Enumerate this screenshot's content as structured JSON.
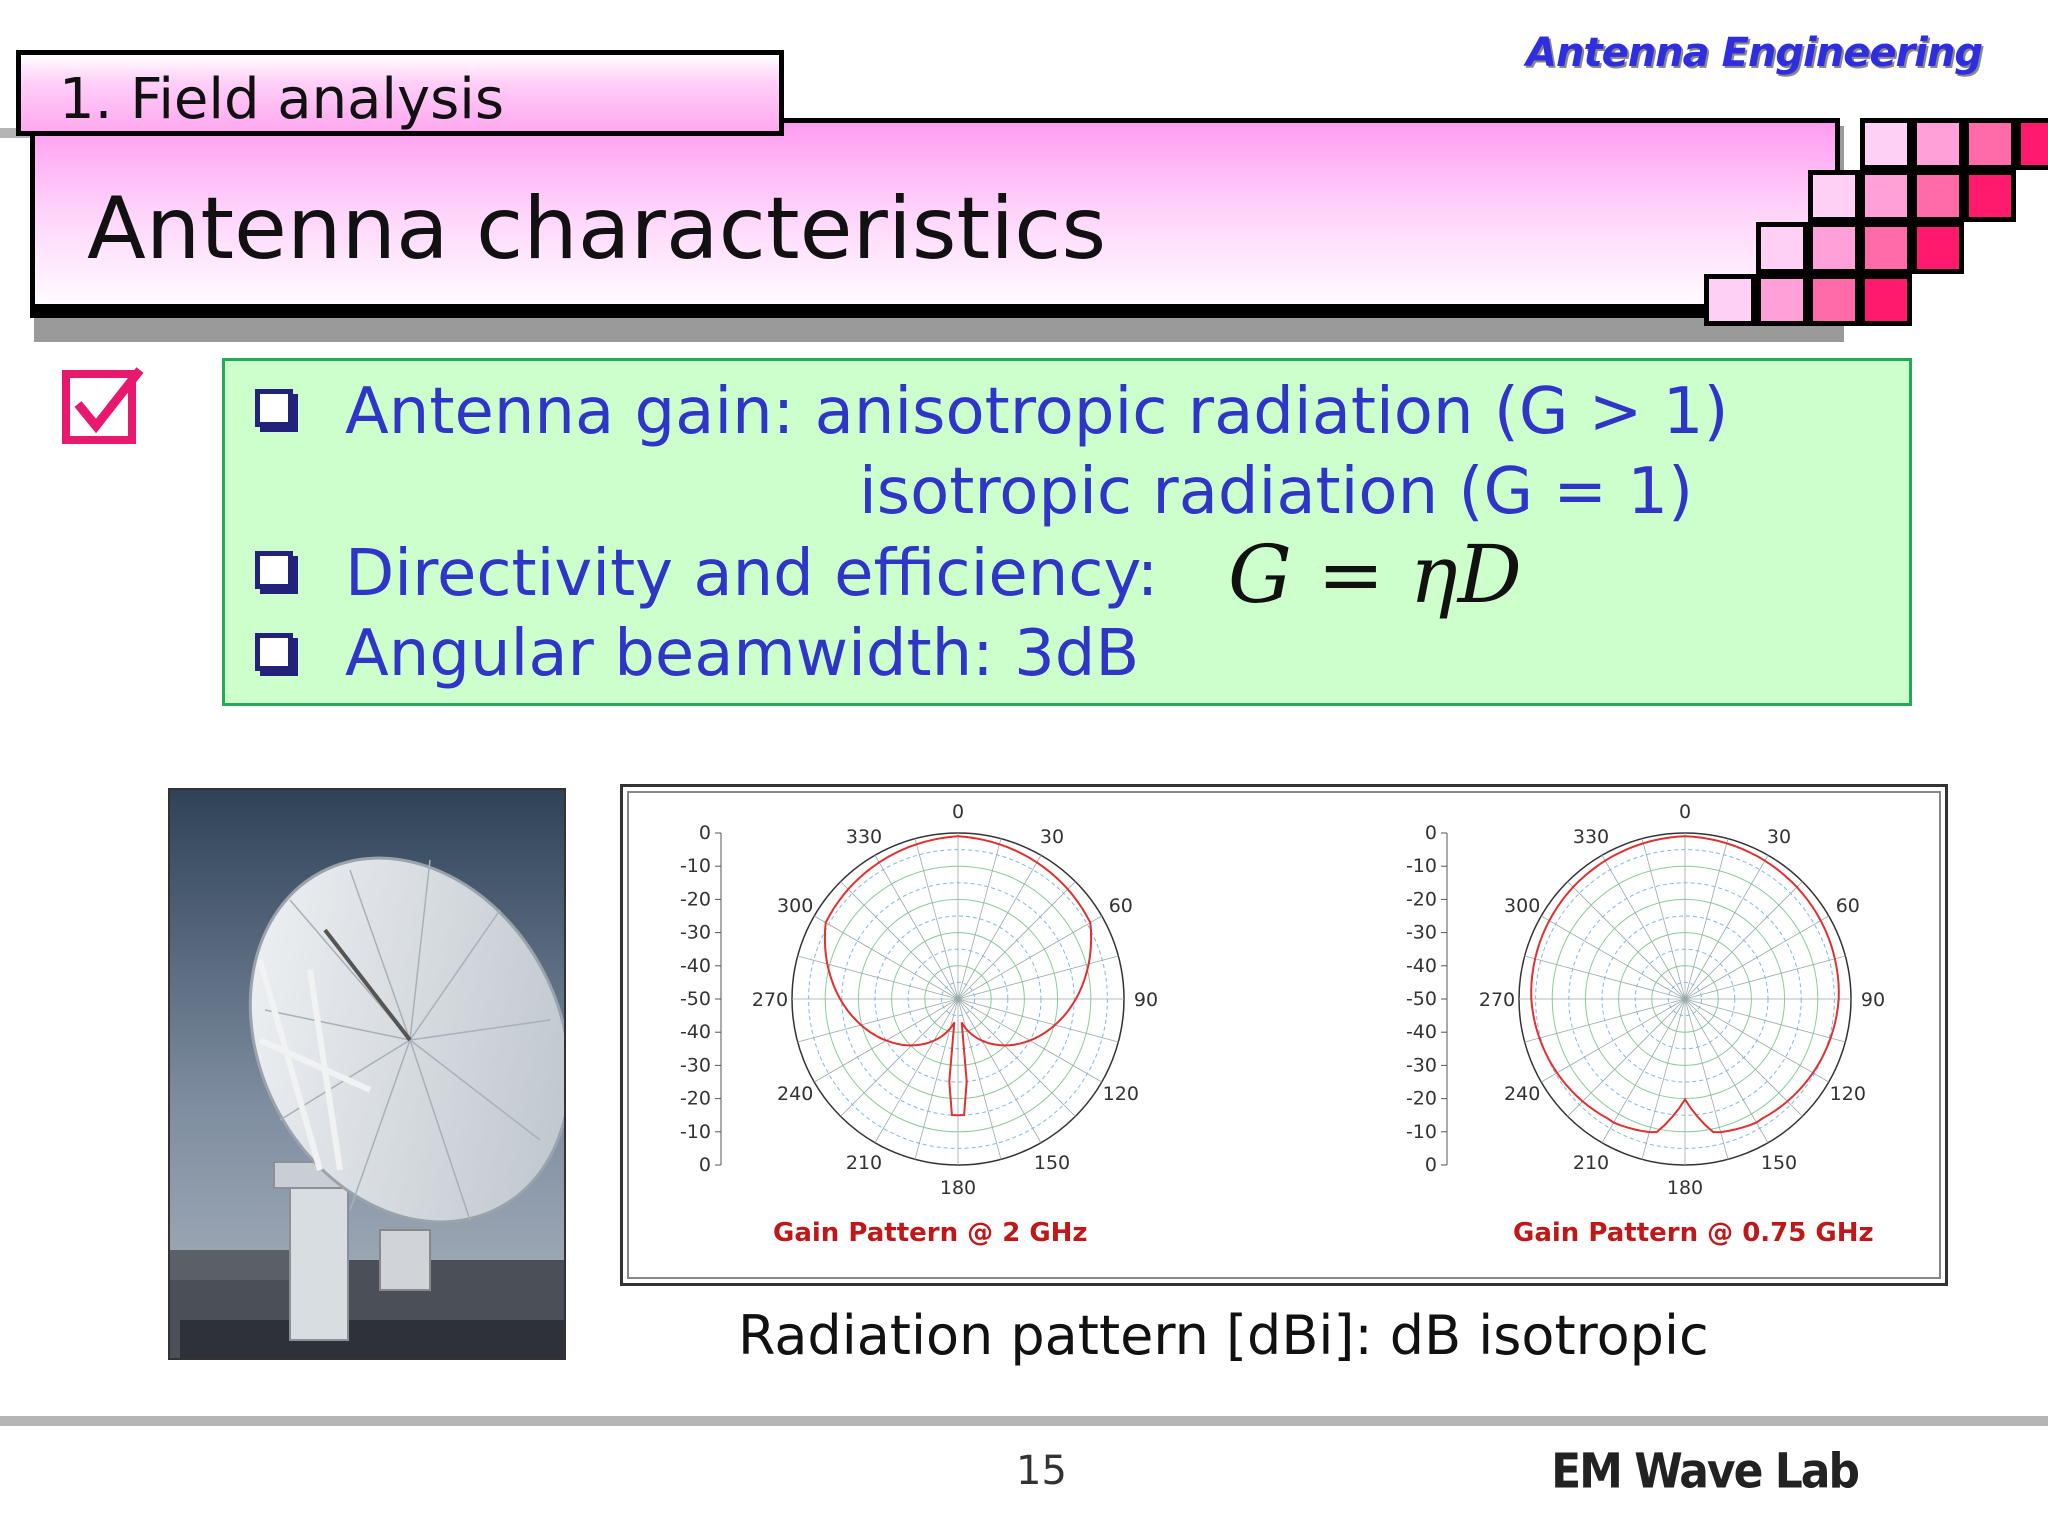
{
  "header": {
    "section_label": "1. Field analysis",
    "slide_title": "Antenna characteristics",
    "course_title": "Antenna Engineering",
    "corner_squares_colors": [
      "#ffd0f6",
      "#ffa0d8",
      "#ff6aa8",
      "#ff1a6e"
    ]
  },
  "bullets": {
    "gain_line1": "Antenna gain: anisotropic radiation (G > 1)",
    "gain_line2": "isotropic radiation (G = 1)",
    "directivity": "Directivity and efficiency:",
    "formula": "G = ηD",
    "beamwidth": "Angular beamwidth: 3dB"
  },
  "patterns": {
    "left_caption": "Gain Pattern @ 2 GHz",
    "right_caption": "Gain Pattern @ 0.75 GHz",
    "scale_labels": [
      "0",
      "-10",
      "-20",
      "-30",
      "-40",
      "-50",
      "-40",
      "-30",
      "-20",
      "-10",
      "0"
    ],
    "angle_labels": [
      "0",
      "30",
      "60",
      "90",
      "120",
      "150",
      "180",
      "210",
      "240",
      "270",
      "300",
      "330"
    ],
    "pattern_color": "#e03030"
  },
  "photo": {
    "subject": "parabolic dish antenna"
  },
  "caption": "Radiation pattern [dBi]: dB isotropic",
  "footer": {
    "page_number": "15",
    "lab_name": "EM Wave Lab"
  },
  "colors": {
    "accent_pink": "#e8186e",
    "bullet_text": "#2f35c6",
    "box_fill": "#ccffcc"
  }
}
